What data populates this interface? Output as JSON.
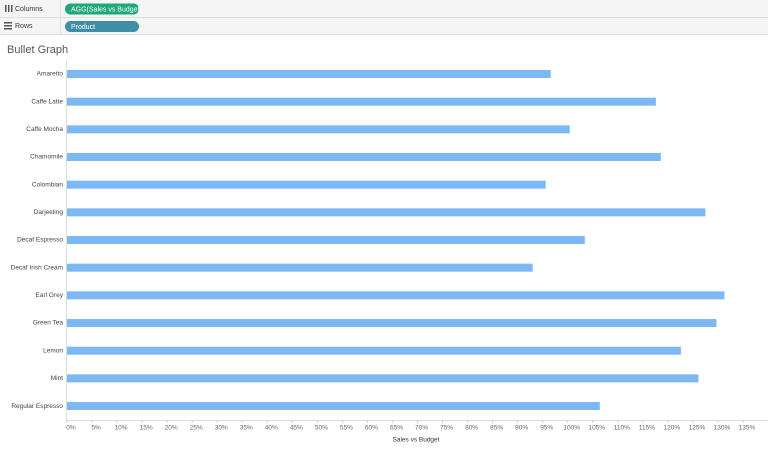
{
  "shelves": {
    "columns_label": "Columns",
    "columns_pill": "AGG(Sales vs Budget)",
    "rows_label": "Rows",
    "rows_pill": "Product"
  },
  "chart_data": {
    "type": "bar",
    "orientation": "horizontal",
    "title": "Bullet Graph",
    "categories": [
      "Amaretto",
      "Caffe Latte",
      "Caffe Mocha",
      "Chamomile",
      "Colombian",
      "Darjeeling",
      "Decaf Espresso",
      "Decaf Irish Cream",
      "Earl Grey",
      "Green Tea",
      "Lemon",
      "Mint",
      "Regular Espresso"
    ],
    "values": [
      96.6,
      117.6,
      100.4,
      118.6,
      95.6,
      127.5,
      103.4,
      93.0,
      131.3,
      129.7,
      122.6,
      126.1,
      106.4
    ],
    "color": "#7cb8f4",
    "x_label": "Sales vs Budget",
    "xlim": [
      0,
      136
    ],
    "xticks": [
      {
        "value": 0,
        "label": "0%"
      },
      {
        "value": 5,
        "label": "5%"
      },
      {
        "value": 10,
        "label": "10%"
      },
      {
        "value": 15,
        "label": "15%"
      },
      {
        "value": 20,
        "label": "20%"
      },
      {
        "value": 25,
        "label": "25%"
      },
      {
        "value": 30,
        "label": "30%"
      },
      {
        "value": 35,
        "label": "35%"
      },
      {
        "value": 40,
        "label": "40%"
      },
      {
        "value": 45,
        "label": "45%"
      },
      {
        "value": 50,
        "label": "50%"
      },
      {
        "value": 55,
        "label": "55%"
      },
      {
        "value": 60,
        "label": "60%"
      },
      {
        "value": 65,
        "label": "65%"
      },
      {
        "value": 70,
        "label": "70%"
      },
      {
        "value": 75,
        "label": "75%"
      },
      {
        "value": 80,
        "label": "80%"
      },
      {
        "value": 85,
        "label": "85%"
      },
      {
        "value": 90,
        "label": "90%"
      },
      {
        "value": 95,
        "label": "95%"
      },
      {
        "value": 100,
        "label": "100%"
      },
      {
        "value": 105,
        "label": "105%"
      },
      {
        "value": 110,
        "label": "110%"
      },
      {
        "value": 115,
        "label": "115%"
      },
      {
        "value": 120,
        "label": "120%"
      },
      {
        "value": 125,
        "label": "125%"
      },
      {
        "value": 130,
        "label": "130%"
      },
      {
        "value": 135,
        "label": "135%"
      }
    ]
  }
}
